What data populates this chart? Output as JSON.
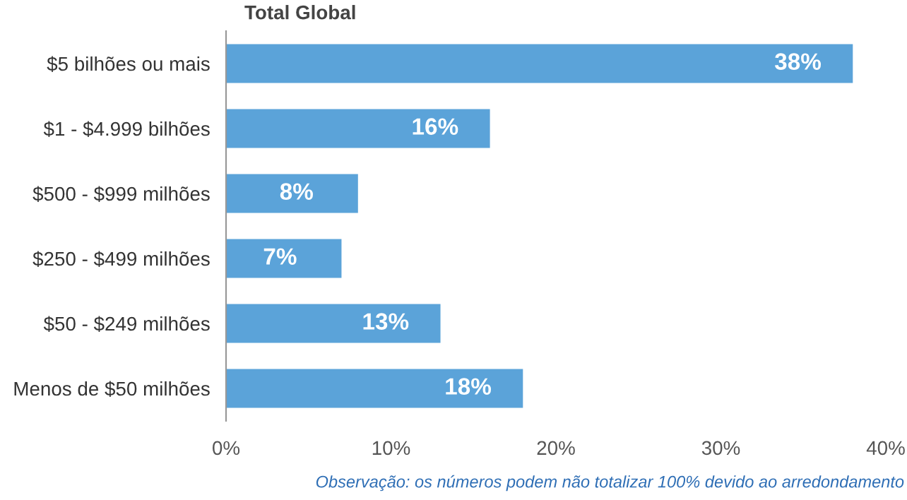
{
  "chart_data": {
    "type": "bar",
    "orientation": "horizontal",
    "title": "Total Global",
    "categories": [
      "$5 bilhões ou mais",
      "$1 - $4.999 bilhões",
      "$500 - $999 milhões",
      "$250 - $499 milhões",
      "$50 - $249 milhões",
      "Menos de $50 milhões"
    ],
    "values": [
      38,
      16,
      8,
      7,
      13,
      18
    ],
    "value_labels": [
      "38%",
      "16%",
      "8%",
      "7%",
      "13%",
      "18%"
    ],
    "color": "#5ba3d9",
    "xlim": [
      0,
      40
    ],
    "xticks": [
      {
        "value": 0,
        "label": "0%"
      },
      {
        "value": 10,
        "label": "10%"
      },
      {
        "value": 20,
        "label": "20%"
      },
      {
        "value": 30,
        "label": "30%"
      },
      {
        "value": 40,
        "label": "40%"
      }
    ],
    "grid": false,
    "annotations": [
      "Observação: os números podem não totalizar 100% devido ao arredondamento"
    ]
  }
}
